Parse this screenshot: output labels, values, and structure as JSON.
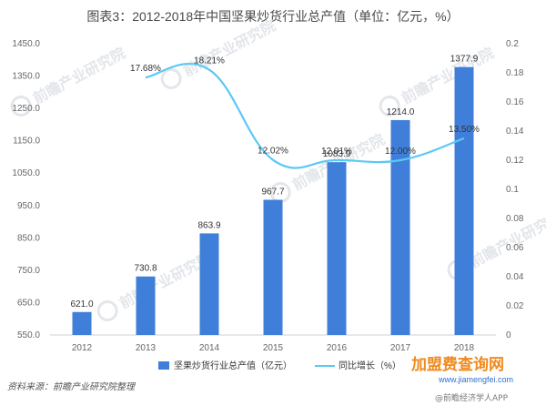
{
  "title": "图表3：2012-2018年中国坚果炒货行业总产值（单位：亿元，%）",
  "source": "资料来源：前瞻产业研究院整理",
  "watermark": "前瞻产业研究院",
  "app_watermark": "@前瞻经济学人APP",
  "site_watermark": {
    "brand": "加盟费查询网",
    "url": "www.jiamengfei.com"
  },
  "colors": {
    "bar": "#3f7fd9",
    "line": "#5bc8f5"
  },
  "chart_data": {
    "type": "bar",
    "categories": [
      "2012",
      "2013",
      "2014",
      "2015",
      "2016",
      "2017",
      "2018"
    ],
    "series": [
      {
        "name": "坚果炒货行业总产值（亿元）",
        "type": "bar",
        "axis": "left",
        "values": [
          621.0,
          730.8,
          863.9,
          967.7,
          1083.9,
          1214.0,
          1377.9
        ],
        "labels": [
          "621.0",
          "730.8",
          "863.9",
          "967.7",
          "1083.9",
          "1214.0",
          "1377.9"
        ]
      },
      {
        "name": "同比增长（%）",
        "type": "line",
        "axis": "right",
        "values": [
          null,
          0.1768,
          0.1821,
          0.1202,
          0.1201,
          0.12,
          0.135
        ],
        "labels": [
          null,
          "17.68%",
          "18.21%",
          "12.02%",
          "12.01%",
          "12.00%",
          "13.50%"
        ]
      }
    ],
    "y_left": {
      "ylim": [
        550,
        1450
      ],
      "ticks": [
        "550.0",
        "650.0",
        "750.0",
        "850.0",
        "950.0",
        "1050.0",
        "1150.0",
        "1250.0",
        "1350.0",
        "1450.0"
      ]
    },
    "y_right": {
      "ylim": [
        0,
        0.2
      ],
      "ticks": [
        "0",
        "0.02",
        "0.04",
        "0.06",
        "0.08",
        "0.1",
        "0.12",
        "0.14",
        "0.16",
        "0.18",
        "0.2"
      ]
    },
    "grid": false,
    "legend": "bottom"
  }
}
